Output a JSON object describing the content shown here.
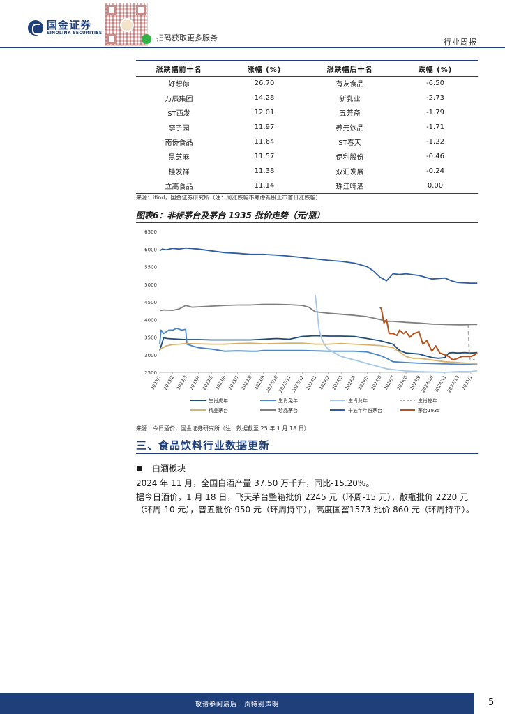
{
  "header": {
    "logo_cn": "国金证券",
    "logo_en": "SINOLINK SECURITIES",
    "scan_text": "扫码获取更多服务",
    "report_type": "行业周报"
  },
  "table": {
    "headers": [
      "涨跌幅前十名",
      "涨幅 (%)",
      "涨跌幅后十名",
      "跌幅 (%)"
    ],
    "rows": [
      [
        "好想你",
        "26.70",
        "有友食品",
        "-6.50"
      ],
      [
        "万辰集团",
        "14.28",
        "新乳业",
        "-2.73"
      ],
      [
        "ST西发",
        "12.01",
        "五芳斋",
        "-1.79"
      ],
      [
        "李子园",
        "11.97",
        "养元饮品",
        "-1.71"
      ],
      [
        "南侨食品",
        "11.64",
        "ST春天",
        "-1.22"
      ],
      [
        "黑芝麻",
        "11.57",
        "伊利股份",
        "-0.46"
      ],
      [
        "桂发祥",
        "11.38",
        "双汇发展",
        "-0.24"
      ],
      [
        "立高食品",
        "11.14",
        "珠江啤酒",
        "0.00"
      ]
    ],
    "source": "来源：ifind，国金证券研究所（注：周涨跌幅不考虑新股上市首日涨跌幅）"
  },
  "figure": {
    "title": "图表6：非标茅台及茅台 1935 批价走势（元/瓶）",
    "source": "来源：今日酒价，国金证券研究所（注：数据截至 25 年 1 月 18 日）"
  },
  "chart_data": {
    "type": "line",
    "ylim": [
      2500,
      6500
    ],
    "yticks": [
      2500,
      3000,
      3500,
      4000,
      4500,
      5000,
      5500,
      6000,
      6500
    ],
    "xticks": [
      "2023/1",
      "2023/2",
      "2023/3",
      "2023/4",
      "2023/5",
      "2023/6",
      "2023/7",
      "2023/8",
      "2023/9",
      "2023/10",
      "2023/11",
      "2023/12",
      "2024/1",
      "2024/2",
      "2024/3",
      "2024/4",
      "2024/5",
      "2024/6",
      "2024/7",
      "2024/8",
      "2024/9",
      "2024/10",
      "2024/11",
      "2024/12",
      "2025/1"
    ],
    "grid": false,
    "legend_position": "bottom",
    "series": [
      {
        "name": "生肖虎年",
        "color": "#1f4e79",
        "dash": "",
        "x": [
          0,
          0.3,
          0.6,
          1,
          1.5,
          2,
          3,
          4,
          5,
          6,
          7,
          8,
          9,
          10,
          11,
          12,
          13,
          14,
          15,
          16,
          17,
          17.5,
          18,
          18.5,
          19,
          20,
          21,
          21.5,
          22,
          22.3,
          22.6,
          23,
          23.5,
          24,
          24.5
        ],
        "y": [
          3120,
          3480,
          3460,
          3450,
          3440,
          3430,
          3430,
          3420,
          3420,
          3420,
          3420,
          3440,
          3460,
          3440,
          3520,
          3540,
          3530,
          3530,
          3520,
          3460,
          3400,
          3350,
          3300,
          3120,
          3050,
          3020,
          2920,
          2900,
          2920,
          3050,
          3060,
          3050,
          3060,
          3050,
          3060
        ]
      },
      {
        "name": "生肖兔年",
        "color": "#4a86c8",
        "dash": "",
        "x": [
          0,
          0.1,
          0.3,
          0.7,
          1,
          1.3,
          1.7,
          2,
          2.1,
          2.5,
          3,
          4,
          5,
          6,
          7,
          7.5,
          8,
          9,
          10,
          11,
          12,
          13,
          14,
          15,
          16,
          17,
          17.5,
          18,
          19,
          20,
          21,
          22,
          23,
          24,
          24.5
        ],
        "y": [
          3300,
          3700,
          3600,
          3700,
          3700,
          3750,
          3700,
          3720,
          3300,
          3250,
          3200,
          3160,
          3100,
          3110,
          3100,
          3100,
          3120,
          3120,
          3120,
          3120,
          3110,
          3100,
          3100,
          3100,
          3080,
          2980,
          2900,
          2800,
          2780,
          2760,
          2750,
          2740,
          2730,
          2720,
          2720
        ]
      },
      {
        "name": "生肖龙年",
        "color": "#a8c8e8",
        "dash": "",
        "x": [
          12,
          12.3,
          12.5,
          12.7,
          13,
          13.5,
          14,
          15,
          15.5,
          16,
          16.5,
          17,
          17.5,
          18,
          18.5,
          19,
          20,
          21,
          22,
          23,
          24,
          24.5
        ],
        "y": [
          4700,
          3700,
          3450,
          3300,
          3150,
          3050,
          2950,
          2850,
          2800,
          2750,
          2700,
          2650,
          2600,
          2580,
          2560,
          2540,
          2520,
          2510,
          2500,
          2520,
          2520,
          2550
        ]
      },
      {
        "name": "生肖蛇年",
        "color": "#a6a6a6",
        "dash": "5,4",
        "x": [
          23.8,
          23.85,
          23.9,
          24.0,
          24.3
        ],
        "y": [
          3850,
          3300,
          2900,
          2850,
          2860
        ]
      },
      {
        "name": "精品茅台",
        "color": "#d9b36b",
        "dash": "",
        "x": [
          0,
          0.5,
          1,
          1.5,
          2,
          3,
          4,
          5,
          6,
          7,
          8,
          9,
          10,
          11,
          12,
          13,
          14,
          15,
          16,
          17,
          18,
          18.5,
          19,
          19.5,
          20,
          21,
          22,
          23,
          24,
          24.5
        ],
        "y": [
          3150,
          3250,
          3290,
          3300,
          3320,
          3310,
          3300,
          3300,
          3320,
          3330,
          3310,
          3320,
          3330,
          3330,
          3300,
          3300,
          3320,
          3300,
          3280,
          3260,
          3200,
          3080,
          2950,
          2900,
          2900,
          2850,
          2800,
          2780,
          2750,
          2740
        ]
      },
      {
        "name": "珍品茅台",
        "color": "#808080",
        "dash": "",
        "x": [
          0,
          0.3,
          1,
          1.5,
          2,
          2.5,
          3,
          4,
          5,
          6,
          7,
          8,
          9,
          10,
          11,
          11.5,
          12,
          13,
          14,
          15,
          16,
          17,
          17.5,
          18,
          19,
          20,
          21,
          22,
          23,
          23.5,
          24,
          24.5
        ],
        "y": [
          4250,
          4270,
          4260,
          4300,
          4400,
          4350,
          4360,
          4380,
          4400,
          4410,
          4410,
          4430,
          4430,
          4420,
          4400,
          4350,
          4220,
          4180,
          4150,
          4120,
          4080,
          4000,
          3950,
          3950,
          3920,
          3900,
          3870,
          3860,
          3850,
          3850,
          3860,
          3860
        ]
      },
      {
        "name": "十五年年份茅台",
        "color": "#2e5fa3",
        "dash": "",
        "x": [
          0,
          0.2,
          0.5,
          1,
          1.5,
          2,
          3,
          4,
          5,
          6,
          7,
          8,
          9,
          10,
          11,
          12,
          13,
          14,
          15,
          16,
          16.5,
          17,
          17.5,
          18,
          18.5,
          19,
          20,
          20.5,
          21,
          22,
          22.5,
          23,
          24,
          24.5
        ],
        "y": [
          5950,
          6000,
          5980,
          6020,
          6000,
          6030,
          6000,
          5950,
          5900,
          5880,
          5850,
          5850,
          5830,
          5800,
          5760,
          5720,
          5680,
          5650,
          5600,
          5500,
          5380,
          5200,
          5100,
          5300,
          5280,
          5300,
          5250,
          5200,
          5150,
          5180,
          5100,
          5050,
          5030,
          5030
        ]
      },
      {
        "name": "茅台1935",
        "color": "#b5531b",
        "dash": "",
        "x": [
          17,
          17.1,
          17.3,
          17.5,
          17.7,
          18,
          18.3,
          18.5,
          18.8,
          19,
          19.3,
          19.6,
          20,
          20.3,
          20.6,
          21,
          21.3,
          21.6,
          22,
          22.3,
          22.6,
          23,
          23.3,
          23.6,
          24,
          24.3,
          24.5
        ],
        "y": [
          4350,
          4300,
          3900,
          4000,
          3600,
          3600,
          3550,
          3700,
          3600,
          3650,
          3500,
          3600,
          3650,
          3300,
          3400,
          3100,
          3250,
          3050,
          3000,
          2950,
          2850,
          2900,
          2950,
          2950,
          2950,
          3000,
          3050
        ]
      }
    ]
  },
  "section": {
    "title": "三、食品饮料行业数据更新",
    "bullet": "白酒板块",
    "para1": "2024 年 11 月，全国白酒产量 37.50 万千升，同比-15.20%。",
    "para2": "据今日酒价，1 月 18 日，飞天茅台整箱批价 2245 元（环周-15 元），散瓶批价 2220 元（环周-10 元），普五批价 950 元（环周持平），高度国窖1573 批价 860 元（环周持平）。"
  },
  "footer": {
    "text": "敬请参阅最后一页特别声明",
    "page": "5"
  }
}
